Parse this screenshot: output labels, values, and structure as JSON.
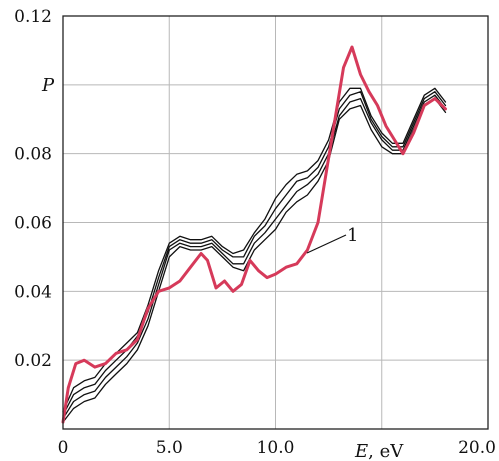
{
  "chart_data": {
    "type": "line",
    "xlabel": {
      "symbol": "E",
      "unit": ", eV"
    },
    "ylabel": "P",
    "xlim": [
      0,
      20
    ],
    "ylim": [
      0,
      0.12
    ],
    "x_ticks": [
      "0",
      "5.0",
      "10.0",
      "20.0"
    ],
    "y_ticks": [
      "0.02",
      "0.04",
      "0.06",
      "0.08",
      "0.12"
    ],
    "grid": true,
    "annotation": "1",
    "colors": {
      "series_1": "#d63a5a",
      "bundle": "#111111"
    },
    "series": [
      {
        "name": "1",
        "color": "#d63a5a",
        "x": [
          0,
          0.25,
          0.6,
          1.0,
          1.5,
          2.0,
          2.5,
          3.0,
          3.5,
          4.0,
          4.5,
          5.0,
          5.5,
          6.0,
          6.5,
          6.8,
          7.2,
          7.6,
          8.0,
          8.4,
          8.8,
          9.2,
          9.6,
          10.0,
          10.5,
          11.0,
          11.5,
          12.0,
          12.4,
          12.8,
          13.2,
          13.6,
          14.0,
          14.4,
          14.8,
          15.2,
          15.6,
          16.0,
          16.5,
          17.0,
          17.5,
          18.0
        ],
        "y": [
          0.002,
          0.012,
          0.019,
          0.02,
          0.018,
          0.019,
          0.022,
          0.023,
          0.026,
          0.035,
          0.04,
          0.041,
          0.043,
          0.047,
          0.051,
          0.049,
          0.041,
          0.043,
          0.04,
          0.042,
          0.049,
          0.046,
          0.044,
          0.045,
          0.047,
          0.048,
          0.052,
          0.06,
          0.075,
          0.09,
          0.105,
          0.111,
          0.103,
          0.098,
          0.094,
          0.088,
          0.084,
          0.08,
          0.086,
          0.094,
          0.096,
          0.093
        ]
      },
      {
        "name": "",
        "color": "#111111",
        "x": [
          0,
          0.5,
          1.0,
          1.5,
          2.0,
          2.5,
          3.0,
          3.5,
          4.0,
          4.5,
          5.0,
          5.5,
          6.0,
          6.5,
          7.0,
          7.5,
          8.0,
          8.5,
          9.0,
          9.5,
          10.0,
          10.5,
          11.0,
          11.5,
          12.0,
          12.5,
          13.0,
          13.5,
          14.0,
          14.5,
          15.0,
          15.5,
          16.0,
          16.5,
          17.0,
          17.5,
          18.0
        ],
        "y": [
          0.002,
          0.006,
          0.008,
          0.009,
          0.013,
          0.016,
          0.019,
          0.023,
          0.03,
          0.04,
          0.05,
          0.053,
          0.052,
          0.052,
          0.053,
          0.05,
          0.047,
          0.046,
          0.052,
          0.055,
          0.058,
          0.063,
          0.066,
          0.068,
          0.072,
          0.078,
          0.09,
          0.093,
          0.094,
          0.087,
          0.082,
          0.08,
          0.08,
          0.087,
          0.094,
          0.096,
          0.092
        ]
      },
      {
        "name": "",
        "color": "#111111",
        "x": [
          0,
          0.5,
          1.0,
          1.5,
          2.0,
          2.5,
          3.0,
          3.5,
          4.0,
          4.5,
          5.0,
          5.5,
          6.0,
          6.5,
          7.0,
          7.5,
          8.0,
          8.5,
          9.0,
          9.5,
          10.0,
          10.5,
          11.0,
          11.5,
          12.0,
          12.5,
          13.0,
          13.5,
          14.0,
          14.5,
          15.0,
          15.5,
          16.0,
          16.5,
          17.0,
          17.5,
          18.0
        ],
        "y": [
          0.003,
          0.008,
          0.01,
          0.011,
          0.015,
          0.018,
          0.021,
          0.025,
          0.032,
          0.042,
          0.052,
          0.054,
          0.053,
          0.053,
          0.054,
          0.051,
          0.048,
          0.048,
          0.054,
          0.057,
          0.061,
          0.065,
          0.069,
          0.071,
          0.074,
          0.08,
          0.091,
          0.095,
          0.096,
          0.089,
          0.084,
          0.081,
          0.081,
          0.088,
          0.095,
          0.097,
          0.093
        ]
      },
      {
        "name": "",
        "color": "#111111",
        "x": [
          0,
          0.5,
          1.0,
          1.5,
          2.0,
          2.5,
          3.0,
          3.5,
          4.0,
          4.5,
          5.0,
          5.5,
          6.0,
          6.5,
          7.0,
          7.5,
          8.0,
          8.5,
          9.0,
          9.5,
          10.0,
          10.5,
          11.0,
          11.5,
          12.0,
          12.5,
          13.0,
          13.5,
          14.0,
          14.5,
          15.0,
          15.5,
          16.0,
          16.5,
          17.0,
          17.5,
          18.0
        ],
        "y": [
          0.004,
          0.01,
          0.012,
          0.013,
          0.017,
          0.02,
          0.023,
          0.027,
          0.034,
          0.044,
          0.053,
          0.055,
          0.054,
          0.054,
          0.055,
          0.052,
          0.05,
          0.05,
          0.056,
          0.059,
          0.064,
          0.068,
          0.072,
          0.073,
          0.076,
          0.082,
          0.093,
          0.097,
          0.098,
          0.09,
          0.085,
          0.082,
          0.082,
          0.089,
          0.096,
          0.098,
          0.094
        ]
      },
      {
        "name": "",
        "color": "#111111",
        "x": [
          0,
          0.5,
          1.0,
          1.5,
          2.0,
          2.5,
          3.0,
          3.5,
          4.0,
          4.5,
          5.0,
          5.5,
          6.0,
          6.5,
          7.0,
          7.5,
          8.0,
          8.5,
          9.0,
          9.5,
          10.0,
          10.5,
          11.0,
          11.5,
          12.0,
          12.5,
          13.0,
          13.5,
          14.0,
          14.5,
          15.0,
          15.5,
          16.0,
          16.5,
          17.0,
          17.5,
          18.0
        ],
        "y": [
          0.005,
          0.012,
          0.014,
          0.015,
          0.019,
          0.022,
          0.025,
          0.028,
          0.036,
          0.046,
          0.054,
          0.056,
          0.055,
          0.055,
          0.056,
          0.053,
          0.051,
          0.052,
          0.057,
          0.061,
          0.067,
          0.071,
          0.074,
          0.075,
          0.078,
          0.084,
          0.095,
          0.099,
          0.099,
          0.091,
          0.086,
          0.083,
          0.083,
          0.09,
          0.097,
          0.099,
          0.095
        ]
      }
    ]
  }
}
